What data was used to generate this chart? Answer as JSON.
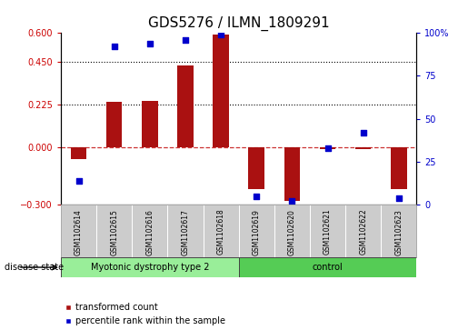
{
  "title": "GDS5276 / ILMN_1809291",
  "samples": [
    "GSM1102614",
    "GSM1102615",
    "GSM1102616",
    "GSM1102617",
    "GSM1102618",
    "GSM1102619",
    "GSM1102620",
    "GSM1102621",
    "GSM1102622",
    "GSM1102623"
  ],
  "transformed_count": [
    -0.06,
    0.24,
    0.245,
    0.43,
    0.59,
    -0.22,
    -0.28,
    -0.01,
    -0.01,
    -0.22
  ],
  "percentile_rank": [
    14,
    92,
    94,
    96,
    99,
    5,
    2,
    33,
    42,
    4
  ],
  "ylim_left": [
    -0.3,
    0.6
  ],
  "ylim_right": [
    0,
    100
  ],
  "yticks_left": [
    -0.3,
    0,
    0.225,
    0.45,
    0.6
  ],
  "yticks_right": [
    0,
    25,
    50,
    75,
    100
  ],
  "dotted_lines": [
    0.45,
    0.225
  ],
  "groups": [
    {
      "label": "Myotonic dystrophy type 2",
      "start": 0,
      "end": 5,
      "color": "#99ee99"
    },
    {
      "label": "control",
      "start": 5,
      "end": 10,
      "color": "#55cc55"
    }
  ],
  "bar_color": "#aa1111",
  "dot_color": "#0000cc",
  "bar_width": 0.45,
  "disease_state_label": "disease state",
  "legend_bar_label": "transformed count",
  "legend_dot_label": "percentile rank within the sample",
  "background_color": "#ffffff",
  "plot_bg_color": "#ffffff",
  "zero_line_color": "#cc3333",
  "title_fontsize": 11,
  "tick_fontsize": 7,
  "label_color_left": "#cc0000",
  "label_color_right": "#0000cc",
  "cell_color": "#cccccc",
  "cell_border_color": "#888888"
}
